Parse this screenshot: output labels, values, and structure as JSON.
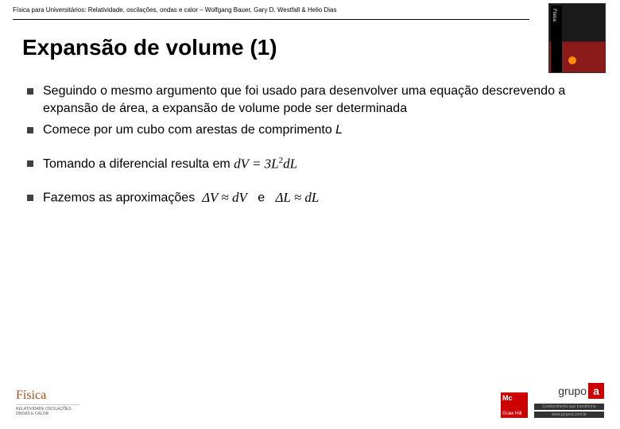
{
  "header": {
    "reference": "Física para Universitários: Relatividade, oscilações, ondas e calor – Wolfgang Bauer, Gary D. Westfall & Helio Dias"
  },
  "slide": {
    "title": "Expansão de volume (1)"
  },
  "bullets": [
    {
      "text_html": "Seguindo o mesmo argumento que foi usado para desenvolver uma equação descrevendo a expansão de área, a expansão de volume pode ser determinada"
    },
    {
      "text_html": "Comece por um cubo com arestas de comprimento <i>L</i>"
    },
    {
      "text_html": "Tomando a diferencial resulta em <span class=\"formula\">dV = 3L<sup>2</sup>dL</span>",
      "extra_gap": true
    },
    {
      "text_html": "Fazemos as aproximações&nbsp;&nbsp;<span class=\"formula\">ΔV ≈ dV</span>&nbsp;&nbsp;&nbsp;e&nbsp;&nbsp;&nbsp;<span class=\"formula\">ΔL ≈ dL</span>",
      "extra_gap": true
    }
  ],
  "footer": {
    "fisica": "Física",
    "mini_lines": "RELATIVIDADE\nOSCILAÇÕES\nONDAS E\nCALOR",
    "grupo_text": "grupo",
    "grupo_a": "a",
    "strap1": "Conhecimento que transforma",
    "strap2": "www.grupoa.com.br"
  }
}
